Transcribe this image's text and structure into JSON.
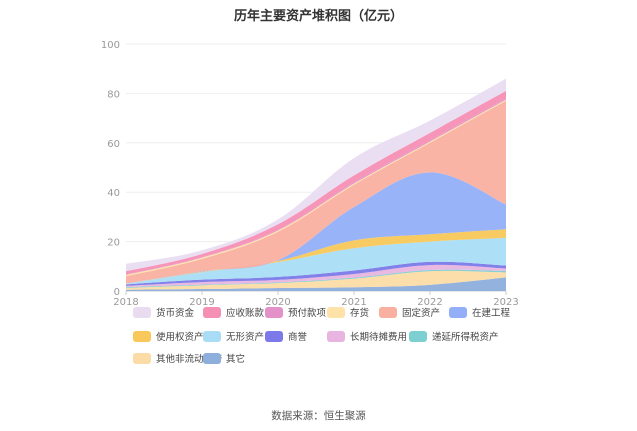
{
  "chart_data": {
    "type": "area",
    "stacked": true,
    "title": "历年主要资产堆积图（亿元）",
    "xlabel": "",
    "ylabel": "",
    "x": [
      "2018",
      "2019",
      "2020",
      "2021",
      "2022",
      "2023"
    ],
    "ylim": [
      0,
      100
    ],
    "yticks": [
      0,
      20,
      40,
      60,
      80,
      100
    ],
    "grid": true,
    "legend_position": "bottom",
    "series": [
      {
        "name": "其它",
        "color": "#8EAEDC",
        "values": [
          0.5,
          0.8,
          1.2,
          1.5,
          2.5,
          5.5
        ]
      },
      {
        "name": "其他非流动资产",
        "color": "#FCDCA6",
        "values": [
          0.8,
          1.5,
          2.0,
          3.5,
          5.5,
          2.0
        ]
      },
      {
        "name": "递延所得税资产",
        "color": "#7ECFD1",
        "values": [
          0.3,
          0.3,
          0.3,
          0.4,
          0.5,
          0.6
        ]
      },
      {
        "name": "长期待摊费用",
        "color": "#E8B5E0",
        "values": [
          0.5,
          1.0,
          1.0,
          1.5,
          2.0,
          1.0
        ]
      },
      {
        "name": "商誉",
        "color": "#7B7AE8",
        "values": [
          0.6,
          1.0,
          1.2,
          1.4,
          1.3,
          1.2
        ]
      },
      {
        "name": "无形资产",
        "color": "#A9DDF6",
        "values": [
          0.3,
          3.0,
          6.0,
          9.0,
          8.2,
          11.2
        ]
      },
      {
        "name": "使用权资产",
        "color": "#F8C85A",
        "values": [
          0.0,
          0.2,
          0.5,
          3.2,
          3.0,
          3.5
        ]
      },
      {
        "name": "在建工程",
        "color": "#93AFF8",
        "values": [
          0.0,
          0.2,
          0.3,
          13.5,
          25.0,
          10.0
        ]
      },
      {
        "name": "固定资产",
        "color": "#F9B0A1",
        "values": [
          3.0,
          5.0,
          11.5,
          9.0,
          12.0,
          42.0
        ]
      },
      {
        "name": "存货",
        "color": "#FDE3A7",
        "values": [
          0.5,
          0.5,
          0.5,
          0.5,
          0.5,
          0.5
        ]
      },
      {
        "name": "预付款项",
        "color": "#E490C9",
        "values": [
          0.2,
          0.2,
          0.3,
          0.5,
          0.5,
          0.5
        ]
      },
      {
        "name": "应收账款",
        "color": "#F58FB4",
        "values": [
          1.3,
          1.3,
          2.2,
          2.8,
          3.0,
          3.0
        ]
      },
      {
        "name": "货币资金",
        "color": "#E9DCF1",
        "values": [
          3.0,
          1.5,
          2.0,
          7.0,
          5.0,
          5.0
        ]
      }
    ],
    "legend_order": [
      "货币资金",
      "应收账款",
      "预付款项",
      "存货",
      "固定资产",
      "在建工程",
      "使用权资产",
      "无形资产",
      "商誉",
      "长期待摊费用",
      "递延所得税资产",
      "其他非流动资产",
      "其它"
    ]
  },
  "source_text": "数据来源：恒生聚源"
}
